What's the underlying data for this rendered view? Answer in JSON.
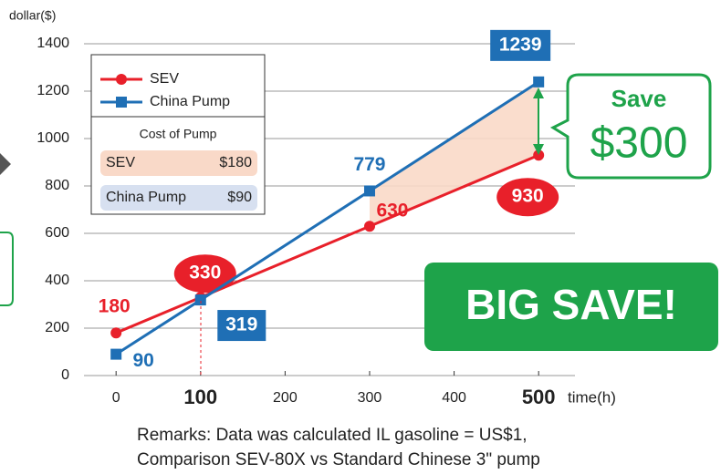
{
  "chart_data": {
    "type": "line",
    "y_label": "dollar($)",
    "x_label": "time(h)",
    "x": [
      0,
      100,
      300,
      500
    ],
    "series": [
      {
        "name": "SEV",
        "color": "#e8202a",
        "values": [
          180,
          330,
          630,
          930
        ]
      },
      {
        "name": "China Pump",
        "color": "#1f6fb5",
        "values": [
          90,
          319,
          779,
          1239
        ]
      }
    ],
    "xlim": [
      -38,
      543
    ],
    "xticks": [
      0,
      100,
      200,
      300,
      400,
      500
    ],
    "ylim": [
      0,
      1400
    ],
    "yticks": [
      0,
      200,
      400,
      600,
      800,
      1000,
      1200,
      1400
    ],
    "grid": true,
    "cost_box": {
      "title": "Cost of Pump",
      "rows": [
        [
          "SEV",
          "$180"
        ],
        [
          "China Pump",
          "$90"
        ]
      ]
    },
    "annotations": {
      "save": "Save",
      "amount": "$300",
      "big": "BIG SAVE!"
    },
    "remarks": [
      "Remarks: Data was calculated IL gasoline = US$1,",
      "Comparison SEV-80X vs Standard Chinese 3\" pump"
    ]
  }
}
